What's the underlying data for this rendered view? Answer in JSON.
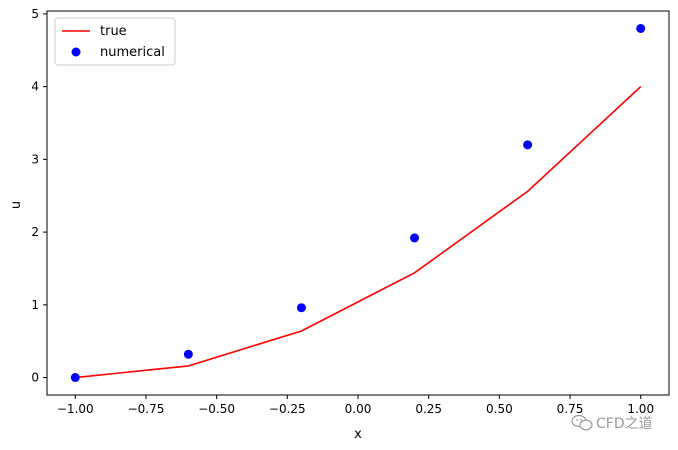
{
  "chart_data": {
    "type": "line",
    "title": "",
    "xlabel": "x",
    "ylabel": "u",
    "xlim": [
      -1.1,
      1.1
    ],
    "ylim": [
      -0.24,
      5.04
    ],
    "x_ticks": [
      -1.0,
      -0.75,
      -0.5,
      -0.25,
      0.0,
      0.25,
      0.5,
      0.75,
      1.0
    ],
    "x_tick_labels": [
      "−1.00",
      "−0.75",
      "−0.50",
      "−0.25",
      "0.00",
      "0.25",
      "0.50",
      "0.75",
      "1.00"
    ],
    "y_ticks": [
      0,
      1,
      2,
      3,
      4,
      5
    ],
    "y_tick_labels": [
      "0",
      "1",
      "2",
      "3",
      "4",
      "5"
    ],
    "grid": false,
    "legend_position": "top-left",
    "series": [
      {
        "name": "true",
        "kind": "line",
        "color": "#ff0000",
        "x": [
          -1.0,
          -0.6,
          -0.2,
          0.2,
          0.6,
          1.0
        ],
        "y": [
          0.0,
          0.16,
          0.64,
          1.44,
          2.56,
          4.0
        ]
      },
      {
        "name": "numerical",
        "kind": "scatter",
        "color": "#0000ff",
        "x": [
          -1.0,
          -0.6,
          -0.2,
          0.2,
          0.6,
          1.0
        ],
        "y": [
          0.0,
          0.32,
          0.96,
          1.92,
          3.2,
          4.8
        ]
      }
    ]
  },
  "watermark": {
    "text": "CFD之道",
    "icon": "wechat-icon"
  }
}
